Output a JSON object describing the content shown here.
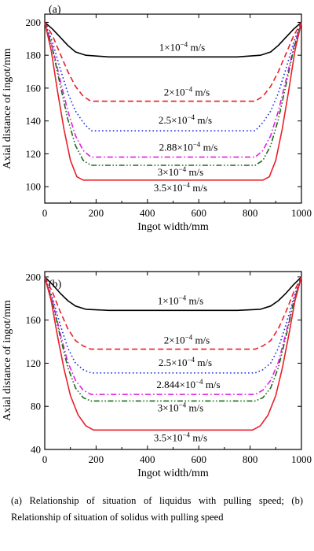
{
  "chart_data": [
    {
      "type": "line",
      "panel_label": "(a)",
      "xlabel": "Ingot width/mm",
      "ylabel": "Axial distance of ingot/mm",
      "xlim": [
        0,
        1000
      ],
      "ylim": [
        90,
        205
      ],
      "xticks": [
        0,
        200,
        400,
        600,
        800,
        1000
      ],
      "yticks": [
        100,
        120,
        140,
        160,
        180,
        200
      ],
      "legend": "none",
      "grid": false,
      "series": [
        {
          "label": "1×10⁻⁴ m/s",
          "color": "#000000",
          "dash": "solid",
          "x": [
            0,
            30,
            60,
            90,
            120,
            160,
            250,
            500,
            750,
            840,
            880,
            910,
            940,
            970,
            1000
          ],
          "y": [
            200,
            196,
            191,
            186,
            182,
            180,
            179,
            179,
            179,
            180,
            182,
            186,
            191,
            196,
            200
          ]
        },
        {
          "label": "2×10⁻⁴ m/s",
          "color": "#e8202a",
          "dash": "dash",
          "x": [
            0,
            30,
            60,
            90,
            120,
            150,
            180,
            500,
            820,
            850,
            880,
            910,
            940,
            970,
            1000
          ],
          "y": [
            200,
            192,
            181,
            170,
            161,
            155,
            152,
            152,
            152,
            155,
            161,
            170,
            181,
            192,
            200
          ]
        },
        {
          "label": "2.5×10⁻⁴ m/s",
          "color": "#1a2ee0",
          "dash": "dot",
          "x": [
            0,
            30,
            60,
            90,
            120,
            150,
            180,
            500,
            820,
            850,
            880,
            910,
            940,
            970,
            1000
          ],
          "y": [
            200,
            188,
            172,
            157,
            146,
            139,
            134,
            134,
            134,
            139,
            146,
            157,
            172,
            188,
            200
          ]
        },
        {
          "label": "2.88×10⁻⁴ m/s",
          "color": "#e020e0",
          "dash": "dashdot",
          "x": [
            0,
            30,
            60,
            90,
            120,
            150,
            180,
            500,
            820,
            850,
            880,
            910,
            940,
            970,
            1000
          ],
          "y": [
            200,
            185,
            165,
            146,
            131,
            122,
            118,
            118,
            118,
            122,
            131,
            146,
            165,
            185,
            200
          ]
        },
        {
          "label": "3×10⁻⁴ m/s",
          "color": "#1e6b1e",
          "dash": "dashdotdot",
          "x": [
            0,
            30,
            60,
            90,
            120,
            150,
            180,
            500,
            820,
            850,
            880,
            910,
            940,
            970,
            1000
          ],
          "y": [
            200,
            184,
            162,
            141,
            125,
            116,
            113,
            113,
            113,
            116,
            125,
            141,
            162,
            184,
            200
          ]
        },
        {
          "label": "3.5×10⁻⁴ m/s",
          "color": "#e8202a",
          "dash": "solid",
          "x": [
            0,
            25,
            50,
            75,
            100,
            125,
            150,
            500,
            850,
            875,
            900,
            925,
            950,
            975,
            1000
          ],
          "y": [
            200,
            183,
            158,
            135,
            116,
            106,
            104,
            104,
            104,
            106,
            116,
            135,
            158,
            183,
            200
          ]
        }
      ]
    },
    {
      "type": "line",
      "panel_label": "(b)",
      "xlabel": "Ingot width/mm",
      "ylabel": "Axial distance of ingot/mm",
      "xlim": [
        0,
        1000
      ],
      "ylim": [
        40,
        205
      ],
      "xticks": [
        0,
        200,
        400,
        600,
        800,
        1000
      ],
      "yticks": [
        40,
        80,
        120,
        160,
        200
      ],
      "legend": "none",
      "grid": false,
      "series": [
        {
          "label": "1×10⁻⁴ m/s",
          "color": "#000000",
          "dash": "solid",
          "x": [
            0,
            30,
            60,
            90,
            120,
            160,
            250,
            500,
            750,
            840,
            880,
            910,
            940,
            970,
            1000
          ],
          "y": [
            200,
            193,
            185,
            178,
            173,
            170,
            169,
            169,
            169,
            170,
            173,
            178,
            185,
            193,
            200
          ]
        },
        {
          "label": "2×10⁻⁴ m/s",
          "color": "#e8202a",
          "dash": "dash",
          "x": [
            0,
            30,
            60,
            90,
            120,
            150,
            180,
            500,
            820,
            850,
            880,
            910,
            940,
            970,
            1000
          ],
          "y": [
            200,
            186,
            168,
            152,
            141,
            136,
            133,
            133,
            133,
            136,
            141,
            152,
            168,
            186,
            200
          ]
        },
        {
          "label": "2.5×10⁻⁴ m/s",
          "color": "#1a2ee0",
          "dash": "dot",
          "x": [
            0,
            30,
            60,
            90,
            120,
            150,
            180,
            500,
            820,
            850,
            880,
            910,
            940,
            970,
            1000
          ],
          "y": [
            200,
            181,
            156,
            134,
            120,
            114,
            111,
            111,
            111,
            114,
            120,
            134,
            156,
            181,
            200
          ]
        },
        {
          "label": "2.844×10⁻⁴ m/s",
          "color": "#e020e0",
          "dash": "dashdot",
          "x": [
            0,
            30,
            60,
            90,
            120,
            150,
            180,
            500,
            820,
            850,
            880,
            910,
            940,
            970,
            1000
          ],
          "y": [
            200,
            178,
            148,
            121,
            104,
            95,
            91,
            91,
            91,
            95,
            104,
            121,
            148,
            178,
            200
          ]
        },
        {
          "label": "3×10⁻⁴ m/s",
          "color": "#1e6b1e",
          "dash": "dashdotdot",
          "x": [
            0,
            30,
            60,
            90,
            120,
            150,
            180,
            500,
            820,
            850,
            880,
            910,
            940,
            970,
            1000
          ],
          "y": [
            200,
            177,
            145,
            116,
            97,
            88,
            85,
            85,
            85,
            88,
            97,
            116,
            145,
            177,
            200
          ]
        },
        {
          "label": "3.5×10⁻⁴ m/s",
          "color": "#e8202a",
          "dash": "solid",
          "x": [
            0,
            25,
            50,
            75,
            100,
            130,
            160,
            190,
            500,
            810,
            840,
            870,
            900,
            925,
            950,
            975,
            1000
          ],
          "y": [
            200,
            178,
            145,
            115,
            90,
            72,
            62,
            58,
            58,
            58,
            62,
            72,
            90,
            115,
            145,
            178,
            200
          ]
        }
      ]
    }
  ],
  "caption": "(a) Relationship of situation of liquidus with pulling speed; (b) Relationship of situation of solidus with pulling speed"
}
